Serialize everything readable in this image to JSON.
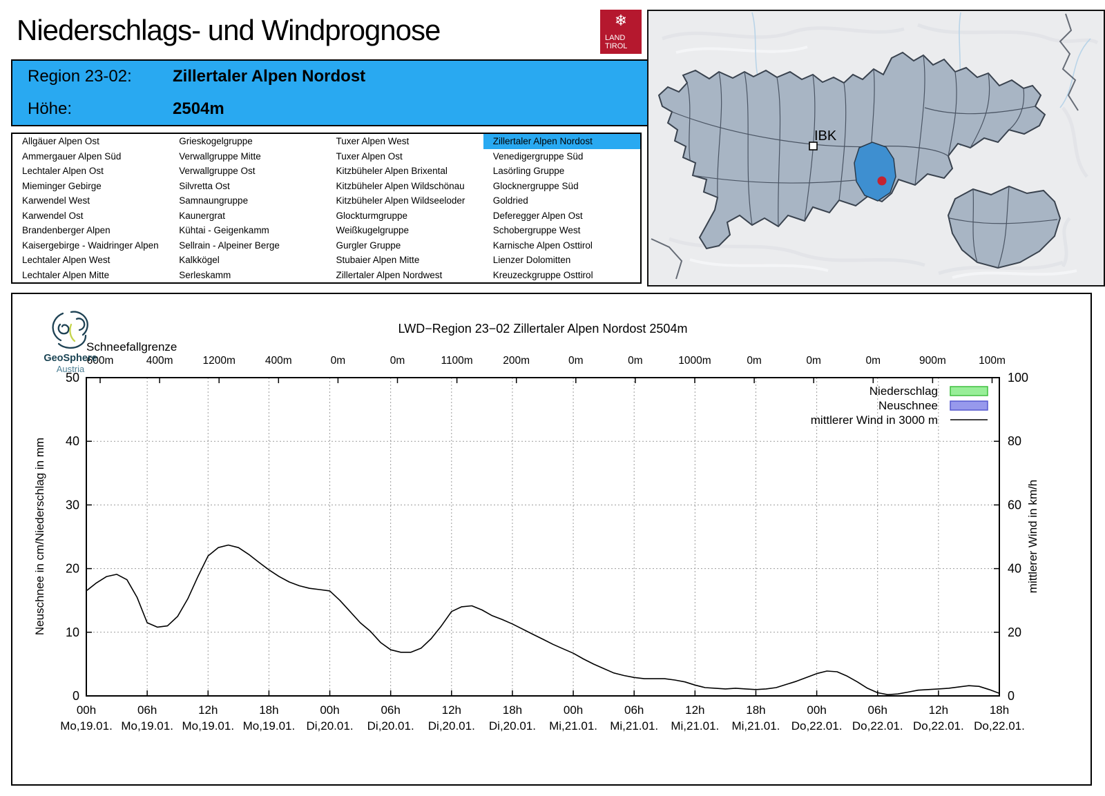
{
  "page": {
    "title": "Niederschlags- und Windprognose"
  },
  "land_tirol_logo": {
    "line1": "LAND",
    "line2": "TIROL",
    "snowflake_icon": "❄",
    "bg_color": "#B5182E"
  },
  "header": {
    "region_label": "Region 23-02:",
    "region_value": "Zillertaler Alpen Nordost",
    "altitude_label": "Höhe:",
    "altitude_value": "2504m",
    "bg_color": "#29A9F1"
  },
  "region_list": {
    "selected": "Zillertaler Alpen Nordost",
    "highlight_color": "#29A9F1",
    "columns": [
      [
        "Allgäuer Alpen Ost",
        "Ammergauer Alpen Süd",
        "Lechtaler Alpen Ost",
        "Mieminger Gebirge",
        "Karwendel West",
        "Karwendel Ost",
        "Brandenberger Alpen",
        "Kaisergebirge - Waidringer Alpen",
        "Lechtaler Alpen West",
        "Lechtaler Alpen Mitte"
      ],
      [
        "Grieskogelgruppe",
        "Verwallgruppe Mitte",
        "Verwallgruppe Ost",
        "Silvretta Ost",
        "Samnaungruppe",
        "Kaunergrat",
        "Kühtai - Geigenkamm",
        "Sellrain - Alpeiner Berge",
        "Kalkkögel",
        "Serleskamm"
      ],
      [
        "Tuxer Alpen West",
        "Tuxer Alpen Ost",
        "Kitzbüheler Alpen Brixental",
        "Kitzbüheler Alpen Wildschönau",
        "Kitzbüheler Alpen Wildseeloder",
        "Glockturmgruppe",
        "Weißkugelgruppe",
        "Gurgler Gruppe",
        "Stubaier Alpen Mitte",
        "Zillertaler Alpen Nordwest"
      ],
      [
        "Zillertaler Alpen Nordost",
        "Venedigergruppe Süd",
        "Lasörling Gruppe",
        "Glocknergruppe Süd",
        "Goldried",
        "Deferegger Alpen Ost",
        "Schobergruppe West",
        "Karnische Alpen Osttirol",
        "Lienzer Dolomitten",
        "Kreuzeckgruppe Osttirol"
      ]
    ]
  },
  "map": {
    "city_label": "IBK",
    "selected_region_name": "Zillertaler Alpen Nordost",
    "region_fill": "#A8B5C4",
    "selected_region_fill": "#3E8FD0",
    "marker_color": "#C32330"
  },
  "geosphere_logo": {
    "name": "GeoSphere",
    "country": "Austria"
  },
  "chart_data": {
    "type": "line",
    "title": "LWD−Region 23−02 Zillertaler Alpen Nordost 2504m",
    "snowline": {
      "label": "Schneefallgrenze",
      "values": [
        "600m",
        "400m",
        "1200m",
        "400m",
        "0m",
        "0m",
        "1100m",
        "200m",
        "0m",
        "0m",
        "1000m",
        "0m",
        "0m",
        "0m",
        "900m",
        "100m"
      ]
    },
    "ylabel_left": "Neuschnee in cm/Niederschlag in mm",
    "ylabel_right": "mittlerer Wind in km/h",
    "ylim_left": [
      0,
      50
    ],
    "ylim_right": [
      0,
      100
    ],
    "yticks_left": [
      0,
      10,
      20,
      30,
      40,
      50
    ],
    "yticks_right": [
      0,
      20,
      40,
      60,
      80,
      100
    ],
    "grid": "dotted",
    "legend_position": "top-right",
    "xticks": [
      {
        "hour": "00h",
        "date": "Mo,19.01."
      },
      {
        "hour": "06h",
        "date": "Mo,19.01."
      },
      {
        "hour": "12h",
        "date": "Mo,19.01."
      },
      {
        "hour": "18h",
        "date": "Mo,19.01."
      },
      {
        "hour": "00h",
        "date": "Di,20.01."
      },
      {
        "hour": "06h",
        "date": "Di,20.01."
      },
      {
        "hour": "12h",
        "date": "Di,20.01."
      },
      {
        "hour": "18h",
        "date": "Di,20.01."
      },
      {
        "hour": "00h",
        "date": "Mi,21.01."
      },
      {
        "hour": "06h",
        "date": "Mi,21.01."
      },
      {
        "hour": "12h",
        "date": "Mi,21.01."
      },
      {
        "hour": "18h",
        "date": "Mi,21.01."
      },
      {
        "hour": "00h",
        "date": "Do,22.01."
      },
      {
        "hour": "06h",
        "date": "Do,22.01."
      },
      {
        "hour": "12h",
        "date": "Do,22.01."
      },
      {
        "hour": "18h",
        "date": "Do,22.01."
      }
    ],
    "legend": [
      {
        "label": "Niederschlag",
        "swatch": "box",
        "fill": "#98EE98",
        "stroke": "#3FBF3F"
      },
      {
        "label": "Neuschnee",
        "swatch": "box",
        "fill": "#9799EC",
        "stroke": "#5558CE"
      },
      {
        "label": "mittlerer Wind in 3000 m",
        "swatch": "line",
        "stroke": "#000000"
      }
    ],
    "series": [
      {
        "name": "mittlerer Wind in 3000 m",
        "axis": "right",
        "unit": "km/h",
        "x_start_hour": 0,
        "x_step_hours": 1,
        "total_hours": 90,
        "values": [
          33,
          35.5,
          37.5,
          38.2,
          36.5,
          31,
          23,
          21.6,
          22,
          25,
          30.5,
          37.5,
          44,
          46.6,
          47.4,
          46.6,
          44.5,
          42,
          39.6,
          37.5,
          35.8,
          34.6,
          33.8,
          33.4,
          33,
          30,
          26.5,
          23,
          20.3,
          16.8,
          14.5,
          13.7,
          13.7,
          15,
          18,
          22,
          26.5,
          28,
          28.3,
          27,
          25.2,
          24,
          22.6,
          21,
          19.4,
          17.8,
          16.2,
          14.8,
          13.4,
          11.6,
          10,
          8.6,
          7.2,
          6.4,
          5.8,
          5.4,
          5.4,
          5.4,
          5,
          4.4,
          3.4,
          2.6,
          2.4,
          2.2,
          2.4,
          2.2,
          2,
          2.2,
          2.6,
          3.6,
          4.6,
          5.8,
          7,
          7.8,
          7.6,
          6.2,
          4.4,
          2.4,
          1,
          0.4,
          0.6,
          1.2,
          1.8,
          2,
          2.2,
          2.4,
          2.8,
          3.2,
          3,
          2,
          0.8
        ]
      },
      {
        "name": "Niederschlag",
        "axis": "left",
        "unit": "mm",
        "values": []
      },
      {
        "name": "Neuschnee",
        "axis": "left",
        "unit": "cm",
        "values": []
      }
    ]
  }
}
